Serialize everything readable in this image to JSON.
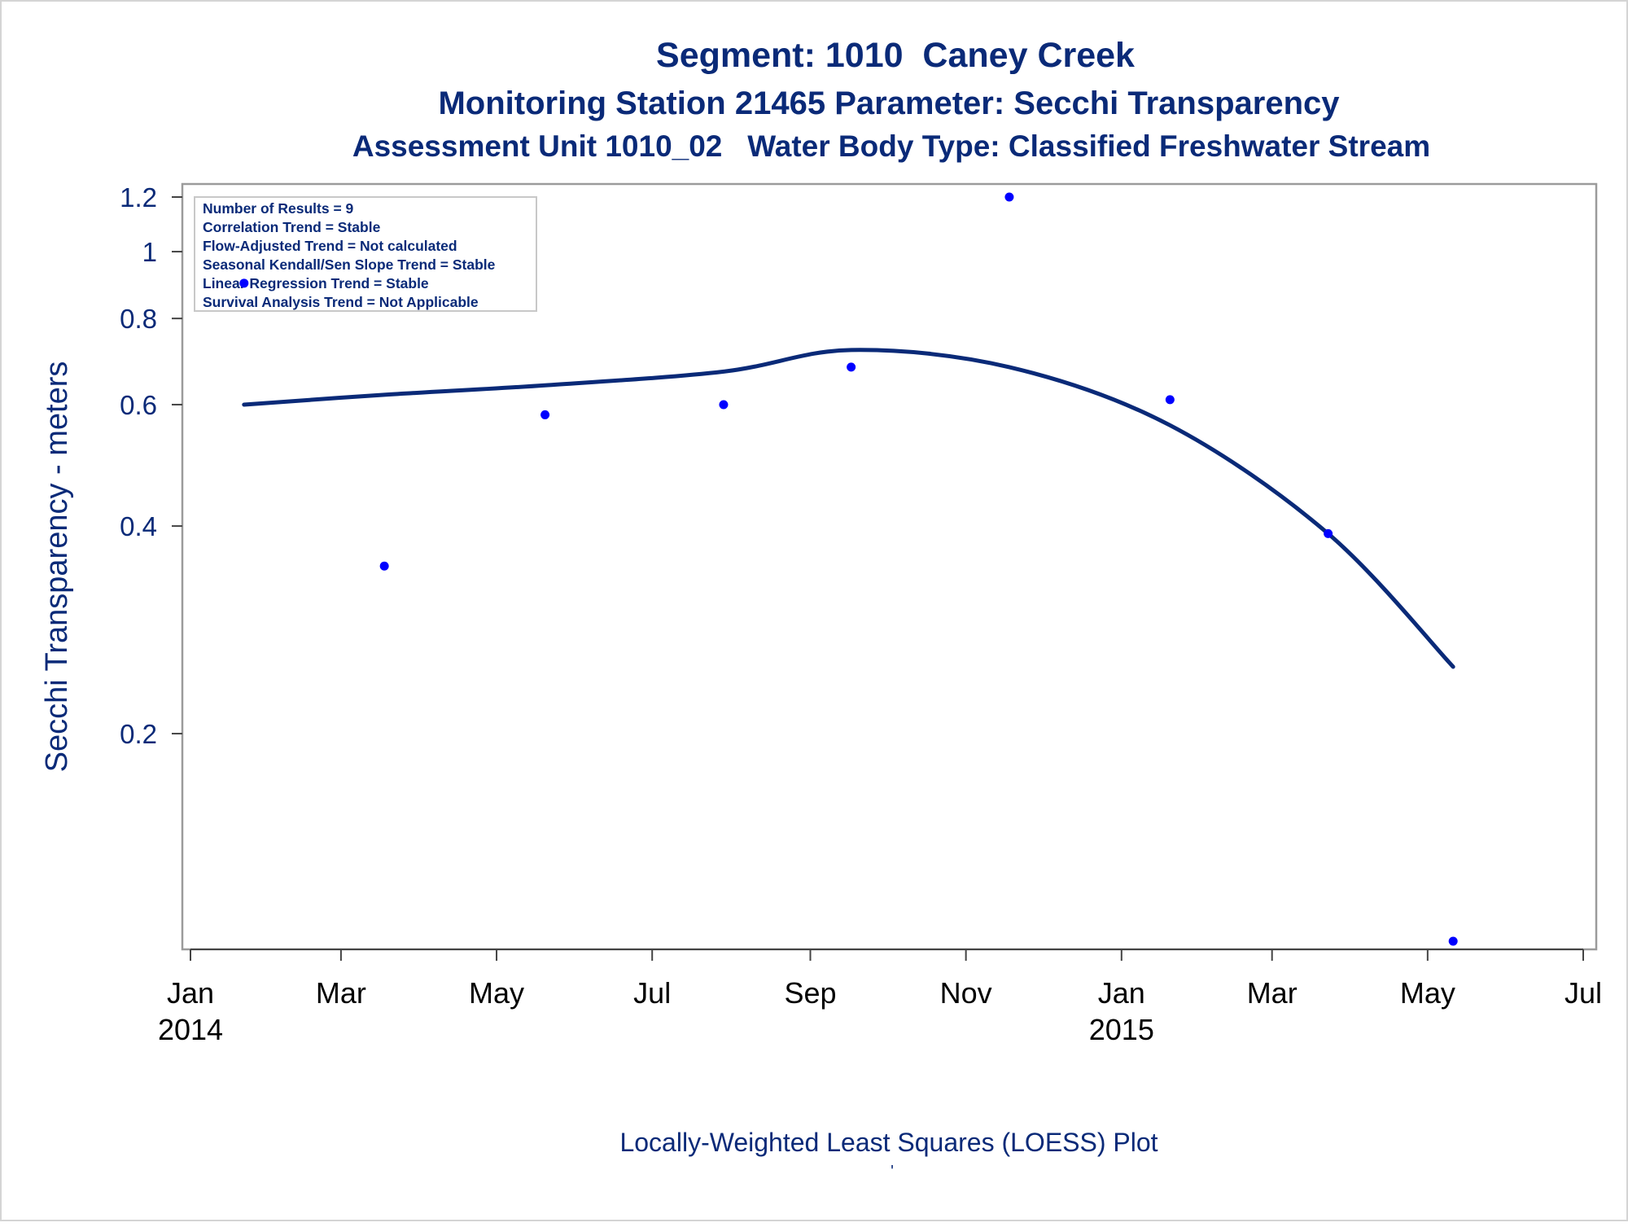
{
  "colors": {
    "text": "#0a2a78",
    "line": "#0a2a78",
    "points": "#0000ff",
    "frame": "#9b9b9b"
  },
  "chart_data": {
    "type": "scatter",
    "title": "Segment: 1010  Caney Creek",
    "subtitle": "Monitoring Station 21465 Parameter: Secchi Transparency",
    "subtitle2": "Assessment Unit 1010_02   Water Body Type: Classified Freshwater Stream",
    "ylabel": "Secchi Transparency - meters",
    "footnote": "Locally-Weighted Least Squares (LOESS) Plot",
    "footnote_mark": "'",
    "y_scale": "log",
    "ylim": [
      0.1,
      1.2
    ],
    "y_ticks": [
      0.2,
      0.4,
      0.6,
      0.8,
      1,
      1.2
    ],
    "y_tick_labels": [
      "0.2",
      "0.4",
      "0.6",
      "0.8",
      "1",
      "1.2"
    ],
    "xlim": [
      "2014-01-01",
      "2015-07-01"
    ],
    "x_ticks": [
      {
        "date": "2014-01-01",
        "label": "Jan",
        "year": "2014"
      },
      {
        "date": "2014-03-01",
        "label": "Mar",
        "year": ""
      },
      {
        "date": "2014-05-01",
        "label": "May",
        "year": ""
      },
      {
        "date": "2014-07-01",
        "label": "Jul",
        "year": ""
      },
      {
        "date": "2014-09-01",
        "label": "Sep",
        "year": ""
      },
      {
        "date": "2014-11-01",
        "label": "Nov",
        "year": ""
      },
      {
        "date": "2015-01-01",
        "label": "Jan",
        "year": "2015"
      },
      {
        "date": "2015-03-01",
        "label": "Mar",
        "year": ""
      },
      {
        "date": "2015-05-01",
        "label": "May",
        "year": ""
      },
      {
        "date": "2015-07-01",
        "label": "Jul",
        "year": ""
      }
    ],
    "stats_box": [
      "Number of Results = 9",
      "Correlation Trend = Stable",
      "Flow-Adjusted Trend = Not calculated",
      "Seasonal Kendall/Sen Slope Trend = Stable",
      "Linear Regression Trend = Stable",
      "Survival Analysis Trend = Not Applicable"
    ],
    "legend_position": "top-left",
    "grid": false,
    "series": [
      {
        "type": "scatter",
        "points": [
          {
            "x": "2014-01-22",
            "y": 0.9
          },
          {
            "x": "2014-03-18",
            "y": 0.35
          },
          {
            "x": "2014-05-20",
            "y": 0.58
          },
          {
            "x": "2014-07-29",
            "y": 0.6
          },
          {
            "x": "2014-09-17",
            "y": 0.68
          },
          {
            "x": "2014-11-18",
            "y": 1.2
          },
          {
            "x": "2015-01-20",
            "y": 0.61
          },
          {
            "x": "2015-03-23",
            "y": 0.39
          },
          {
            "x": "2015-05-11",
            "y": 0.1
          }
        ]
      },
      {
        "type": "line",
        "points": [
          {
            "x": "2014-01-22",
            "y": 0.6
          },
          {
            "x": "2014-03-18",
            "y": 0.62
          },
          {
            "x": "2014-05-20",
            "y": 0.64
          },
          {
            "x": "2014-07-29",
            "y": 0.67
          },
          {
            "x": "2014-09-17",
            "y": 0.72
          },
          {
            "x": "2014-11-18",
            "y": 0.68
          },
          {
            "x": "2015-01-20",
            "y": 0.56
          },
          {
            "x": "2015-03-23",
            "y": 0.39
          },
          {
            "x": "2015-05-11",
            "y": 0.25
          }
        ]
      }
    ]
  }
}
